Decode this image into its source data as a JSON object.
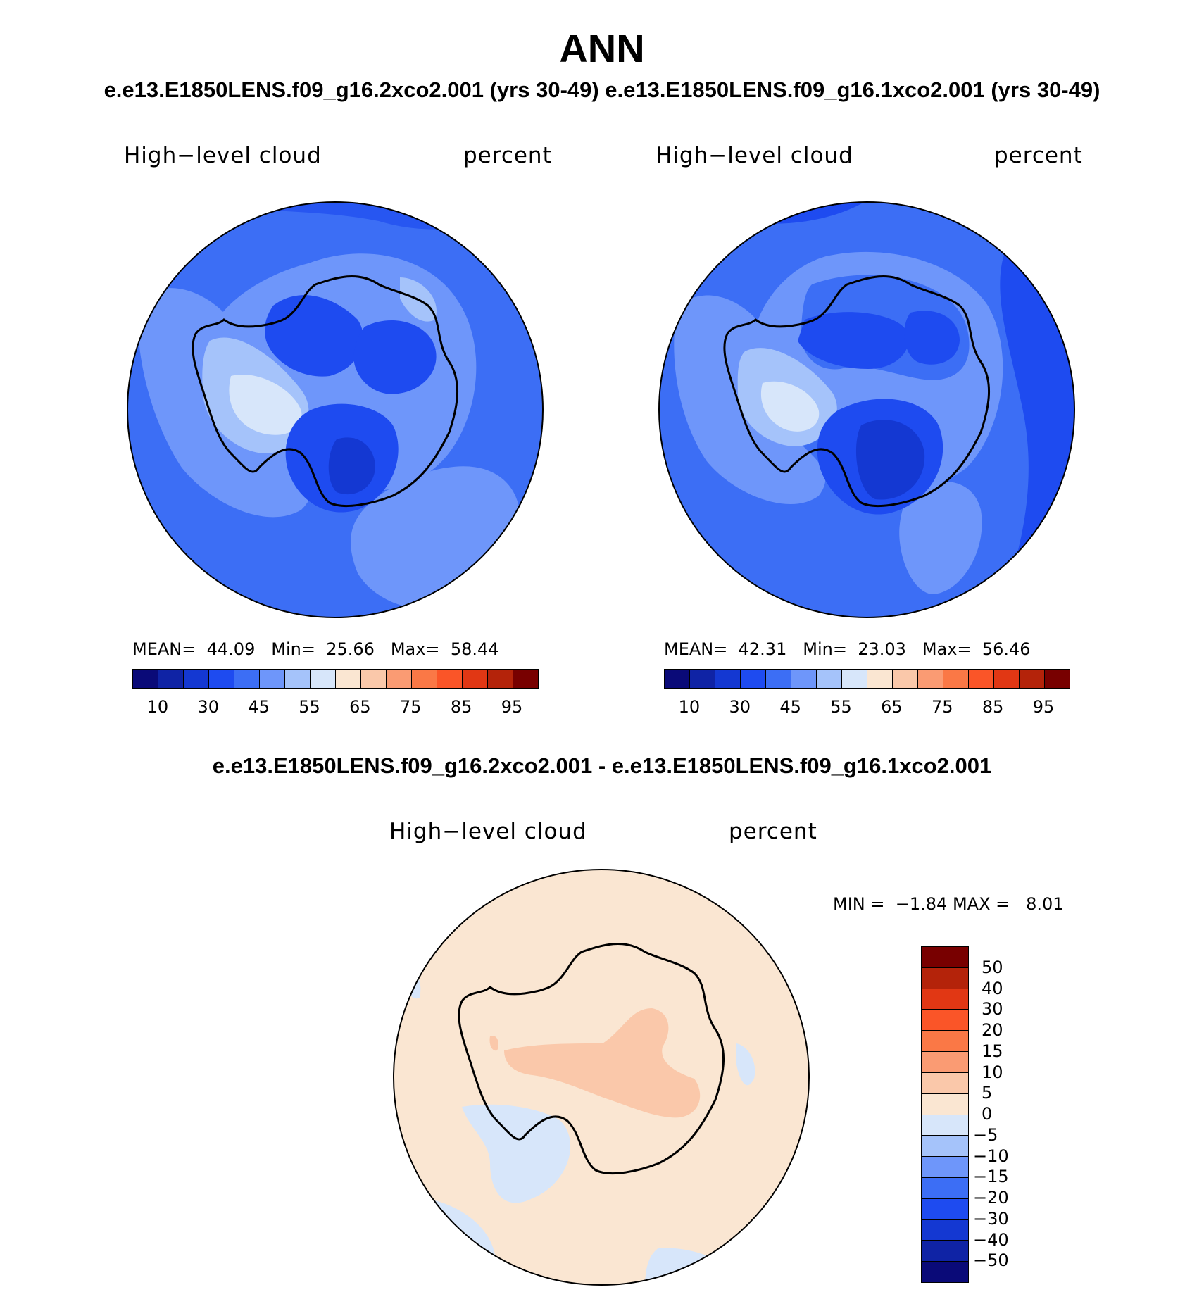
{
  "title": "ANN",
  "subtitle": "e.e13.E1850LENS.f09_g16.2xco2.001 (yrs 30-49) e.e13.E1850LENS.f09_g16.1xco2.001 (yrs 30-49)",
  "diff_title": "e.e13.E1850LENS.f09_g16.2xco2.001 - e.e13.E1850LENS.f09_g16.1xco2.001",
  "panels": [
    {
      "variable": "High−level cloud",
      "units": "percent",
      "mean_label": "MEAN=",
      "mean": "44.09",
      "min_label": "Min=",
      "min": "25.66",
      "max_label": "Max=",
      "max": "58.44"
    },
    {
      "variable": "High−level cloud",
      "units": "percent",
      "mean_label": "MEAN=",
      "mean": "42.31",
      "min_label": "Min=",
      "min": "23.03",
      "max_label": "Max=",
      "max": "56.46"
    }
  ],
  "diff_panel": {
    "variable": "High−level cloud",
    "units": "percent",
    "min_label": "MIN =",
    "min": "−1.84",
    "max_label": "MAX =",
    "max": "8.01"
  },
  "colorbar_main": {
    "colors": [
      "#0a0a78",
      "#0f23a5",
      "#1438d2",
      "#1e4bf0",
      "#3c6ef5",
      "#6e96fa",
      "#a5c3fa",
      "#d7e6fa",
      "#fae6d2",
      "#fac8aa",
      "#fa9b73",
      "#fa7846",
      "#fa5528",
      "#e13714",
      "#b4230a",
      "#780000"
    ],
    "tick_labels": [
      "10",
      "30",
      "45",
      "55",
      "65",
      "75",
      "85",
      "95"
    ]
  },
  "colorbar_diff": {
    "colors": [
      "#780000",
      "#b4230a",
      "#e13714",
      "#fa5528",
      "#fa7846",
      "#fa9b73",
      "#fac8aa",
      "#fae6d2",
      "#d7e6fa",
      "#a5c3fa",
      "#6e96fa",
      "#3c6ef5",
      "#1e4bf0",
      "#1438d2",
      "#0f23a5",
      "#0a0a78"
    ],
    "tick_labels": [
      "50",
      "40",
      "30",
      "20",
      "15",
      "10",
      "5",
      "0",
      "−5",
      "−10",
      "−15",
      "−20",
      "−30",
      "−40",
      "−50"
    ]
  }
}
